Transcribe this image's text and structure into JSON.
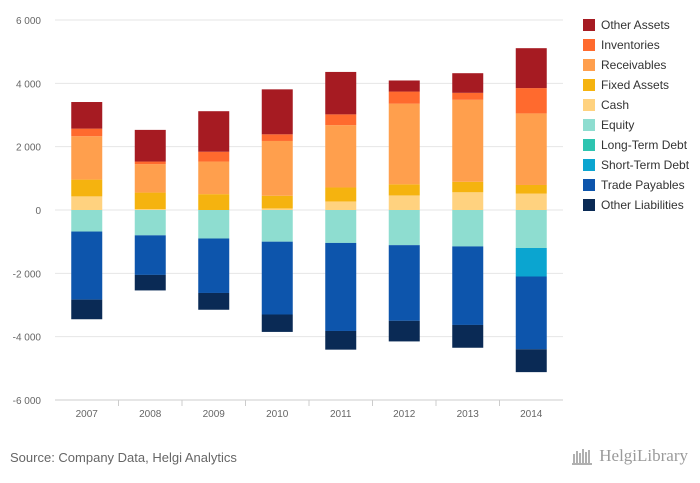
{
  "chart_data": {
    "type": "bar",
    "stacked": true,
    "categories": [
      "2007",
      "2008",
      "2009",
      "2010",
      "2011",
      "2012",
      "2013",
      "2014"
    ],
    "ylim": [
      -6000,
      6000
    ],
    "yticks": [
      6000,
      4000,
      2000,
      0,
      -2000,
      -4000,
      -6000
    ],
    "ytick_labels": [
      "6 000",
      "4 000",
      "2 000",
      "0",
      "-2 000",
      "-4 000",
      "-6 000"
    ],
    "grid": "horizontal",
    "legend_position": "right",
    "assets": [
      {
        "name": "Cash",
        "color": "#FFD27F",
        "values": [
          430,
          30,
          0,
          50,
          270,
          460,
          560,
          520
        ]
      },
      {
        "name": "Fixed Assets",
        "color": "#F5B30F",
        "values": [
          530,
          520,
          500,
          400,
          440,
          350,
          330,
          270
        ]
      },
      {
        "name": "Receivables",
        "color": "#FF9F4D",
        "values": [
          1370,
          900,
          1030,
          1730,
          1970,
          2550,
          2590,
          2260
        ]
      },
      {
        "name": "Inventories",
        "color": "#FF6A2E",
        "values": [
          240,
          80,
          310,
          210,
          340,
          380,
          220,
          800
        ]
      },
      {
        "name": "Other Assets",
        "color": "#A61B22",
        "values": [
          840,
          1000,
          1280,
          1420,
          1340,
          350,
          620,
          1260
        ]
      }
    ],
    "liabilities": [
      {
        "name": "Equity",
        "color": "#8EDDD0",
        "values": [
          -680,
          -800,
          -900,
          -1000,
          -1040,
          -1110,
          -1150,
          -1200
        ]
      },
      {
        "name": "Long-Term Debt",
        "color": "#2EC4B0",
        "values": [
          0,
          0,
          0,
          0,
          0,
          0,
          0,
          0
        ]
      },
      {
        "name": "Short-Term Debt",
        "color": "#0BA5D0",
        "values": [
          0,
          0,
          0,
          0,
          0,
          0,
          0,
          -900
        ]
      },
      {
        "name": "Trade Payables",
        "color": "#0D55AC",
        "values": [
          -2150,
          -1250,
          -1720,
          -2300,
          -2780,
          -2390,
          -2480,
          -2300
        ]
      },
      {
        "name": "Other Liabilities",
        "color": "#0A2A55",
        "values": [
          -620,
          -490,
          -530,
          -550,
          -590,
          -650,
          -720,
          -720
        ]
      }
    ],
    "legend": [
      {
        "name": "Other Assets",
        "color": "#A61B22"
      },
      {
        "name": "Inventories",
        "color": "#FF6A2E"
      },
      {
        "name": "Receivables",
        "color": "#FF9F4D"
      },
      {
        "name": "Fixed Assets",
        "color": "#F5B30F"
      },
      {
        "name": "Cash",
        "color": "#FFD27F"
      },
      {
        "name": "Equity",
        "color": "#8EDDD0"
      },
      {
        "name": "Long-Term Debt",
        "color": "#2EC4B0"
      },
      {
        "name": "Short-Term Debt",
        "color": "#0BA5D0"
      },
      {
        "name": "Trade Payables",
        "color": "#0D55AC"
      },
      {
        "name": "Other Liabilities",
        "color": "#0A2A55"
      }
    ]
  },
  "footer": {
    "source": "Source: Company Data, Helgi Analytics",
    "brand": "HelgiLibrary"
  }
}
